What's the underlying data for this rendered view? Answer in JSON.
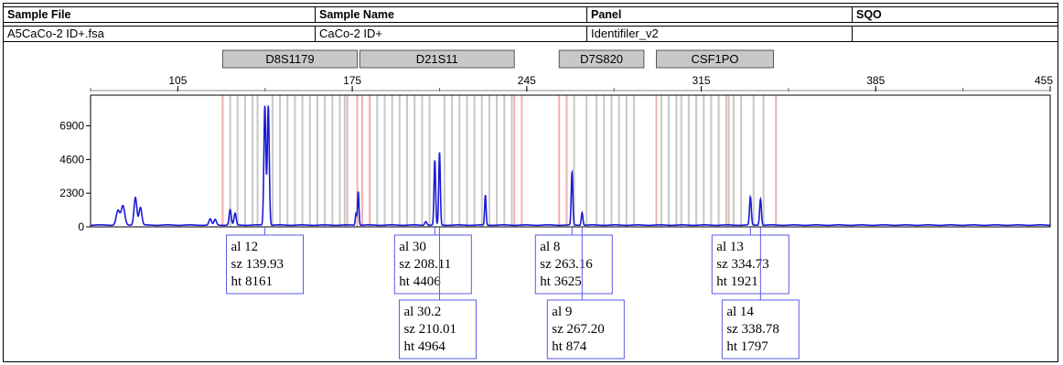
{
  "table": {
    "headers": [
      "Sample File",
      "Sample Name",
      "Panel",
      "SQO"
    ],
    "row": {
      "sample_file": "A5CaCo-2 ID+.fsa",
      "sample_name": "CaCo-2 ID+",
      "panel": "Identifiler_v2",
      "sqo_icon": "blue-x-icon",
      "sqo_glyph": "✕"
    }
  },
  "colors": {
    "trace": "#1a1ad6",
    "bin_gray": "#c8c8c8",
    "bin_pink": "#f2b0b0",
    "marker_fill": "#c8c8c8",
    "label_border": "#5a5ae6"
  },
  "chart_data": {
    "type": "line",
    "title": "",
    "xlabel": "",
    "ylabel": "",
    "x_ticks": [
      105,
      175,
      245,
      315,
      385,
      455
    ],
    "y_ticks": [
      0,
      2300,
      4600,
      6900
    ],
    "xlim": [
      70,
      455
    ],
    "ylim": [
      0,
      9000
    ],
    "markers": [
      {
        "name": "D8S1179",
        "start": 123,
        "end": 177
      },
      {
        "name": "D21S11",
        "start": 178,
        "end": 240
      },
      {
        "name": "D7S820",
        "start": 258,
        "end": 292
      },
      {
        "name": "CSF1PO",
        "start": 297,
        "end": 344
      }
    ],
    "peaks": [
      {
        "x": 81,
        "h": 1000,
        "w": 1.0
      },
      {
        "x": 83,
        "h": 1300,
        "w": 1.0
      },
      {
        "x": 88,
        "h": 1900,
        "w": 0.8
      },
      {
        "x": 90,
        "h": 1200,
        "w": 0.8
      },
      {
        "x": 118,
        "h": 420,
        "w": 0.7
      },
      {
        "x": 120,
        "h": 380,
        "w": 0.7
      },
      {
        "x": 126,
        "h": 1050,
        "w": 0.6
      },
      {
        "x": 128,
        "h": 800,
        "w": 0.6
      },
      {
        "x": 139.93,
        "h": 8161,
        "w": 0.55
      },
      {
        "x": 141.3,
        "h": 8161,
        "w": 0.55
      },
      {
        "x": 176.5,
        "h": 800,
        "w": 0.4
      },
      {
        "x": 177.4,
        "h": 2300,
        "w": 0.4
      },
      {
        "x": 204.5,
        "h": 250,
        "w": 0.6
      },
      {
        "x": 208.11,
        "h": 4406,
        "w": 0.45
      },
      {
        "x": 210.01,
        "h": 4964,
        "w": 0.45
      },
      {
        "x": 228.4,
        "h": 2050,
        "w": 0.4
      },
      {
        "x": 263.16,
        "h": 3625,
        "w": 0.45
      },
      {
        "x": 267.2,
        "h": 874,
        "w": 0.45
      },
      {
        "x": 334.73,
        "h": 1921,
        "w": 0.5
      },
      {
        "x": 338.78,
        "h": 1797,
        "w": 0.5
      }
    ],
    "bins_gray": [
      123,
      126,
      129,
      132,
      135,
      137,
      143,
      146,
      149,
      152,
      155,
      158,
      161,
      164,
      167,
      170,
      172,
      182,
      185,
      188,
      191,
      194,
      197,
      200,
      203,
      206,
      212,
      215,
      218,
      221,
      224,
      227,
      230,
      233,
      236,
      239,
      264,
      269,
      273,
      276,
      279,
      282,
      285,
      288,
      299,
      302,
      305,
      307,
      310,
      313,
      316,
      319,
      322,
      325,
      328,
      331,
      336,
      340
    ],
    "bins_pink": [
      123,
      173,
      177,
      179,
      182,
      240,
      243,
      258,
      261,
      297,
      326,
      345
    ],
    "annotations": [
      {
        "x": 139.93,
        "lines": [
          "al 12",
          "sz 139.93",
          "ht 8161"
        ]
      },
      {
        "x": 208.11,
        "lines": [
          "al 30",
          "sz 208.11",
          "ht 4406"
        ]
      },
      {
        "x": 210.01,
        "lines": [
          "al 30.2",
          "sz 210.01",
          "ht 4964"
        ]
      },
      {
        "x": 263.16,
        "lines": [
          "al 8",
          "sz 263.16",
          "ht 3625"
        ]
      },
      {
        "x": 267.2,
        "lines": [
          "al 9",
          "sz 267.20",
          "ht 874"
        ]
      },
      {
        "x": 334.73,
        "lines": [
          "al 13",
          "sz 334.73",
          "ht 1921"
        ]
      },
      {
        "x": 338.78,
        "lines": [
          "al 14",
          "sz 338.78",
          "ht 1797"
        ]
      }
    ]
  }
}
